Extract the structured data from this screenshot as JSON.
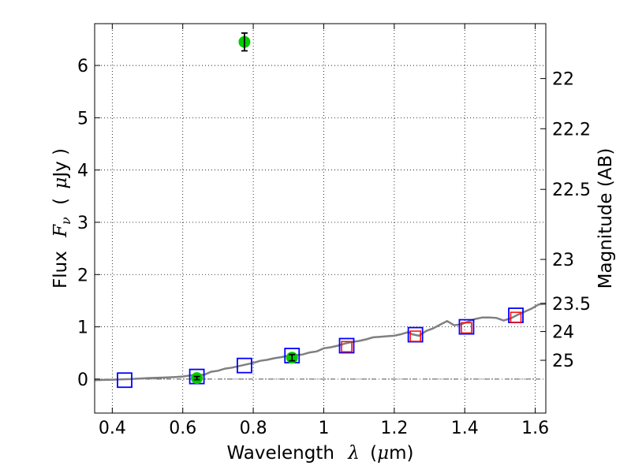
{
  "chart_data": {
    "type": "scatter",
    "title": "",
    "xlabel_parts": {
      "text": "Wavelength",
      "symbol": "λ",
      "unit_open": "(",
      "unit_mu": "μ",
      "unit_rest": "m)"
    },
    "ylabel_parts": {
      "text": "Flux",
      "symbol": "F",
      "subscript": "ν",
      "unit_open": "(",
      "unit_mu": "μ",
      "unit_rest": "Jy )"
    },
    "y2label": "Magnitude (AB)",
    "xlim": [
      0.35,
      1.63
    ],
    "ylim": [
      -0.65,
      6.8
    ],
    "grid": true,
    "x_ticks": [
      0.4,
      0.6,
      0.8,
      1.0,
      1.2,
      1.4,
      1.6
    ],
    "x_tick_labels": [
      "0.4",
      "0.6",
      "0.8",
      "1",
      "1.2",
      "1.4",
      "1.6"
    ],
    "y_ticks": [
      0,
      1,
      2,
      3,
      4,
      5,
      6
    ],
    "y_tick_labels": [
      "0",
      "1",
      "2",
      "3",
      "4",
      "5",
      "6"
    ],
    "y2_ticks": [
      {
        "label": "22",
        "flux": 5.75
      },
      {
        "label": "22.2",
        "flux": 4.79
      },
      {
        "label": "22.5",
        "flux": 3.63
      },
      {
        "label": "23",
        "flux": 2.29
      },
      {
        "label": "23.5",
        "flux": 1.45
      },
      {
        "label": "24",
        "flux": 0.91
      },
      {
        "label": "25",
        "flux": 0.36
      }
    ],
    "zero_line": 0,
    "series": [
      {
        "kind": "model-spectrum",
        "color": "#808080",
        "points": [
          [
            0.35,
            -0.02
          ],
          [
            0.4,
            -0.01
          ],
          [
            0.45,
            0.0
          ],
          [
            0.5,
            0.02
          ],
          [
            0.55,
            0.03
          ],
          [
            0.58,
            0.04
          ],
          [
            0.6,
            0.05
          ],
          [
            0.62,
            0.07
          ],
          [
            0.64,
            0.09
          ],
          [
            0.66,
            0.08
          ],
          [
            0.68,
            0.14
          ],
          [
            0.7,
            0.16
          ],
          [
            0.72,
            0.2
          ],
          [
            0.74,
            0.22
          ],
          [
            0.76,
            0.25
          ],
          [
            0.78,
            0.28
          ],
          [
            0.8,
            0.31
          ],
          [
            0.82,
            0.35
          ],
          [
            0.84,
            0.37
          ],
          [
            0.86,
            0.4
          ],
          [
            0.88,
            0.42
          ],
          [
            0.9,
            0.45
          ],
          [
            0.92,
            0.46
          ],
          [
            0.94,
            0.47
          ],
          [
            0.96,
            0.51
          ],
          [
            0.98,
            0.53
          ],
          [
            1.0,
            0.59
          ],
          [
            1.02,
            0.61
          ],
          [
            1.04,
            0.64
          ],
          [
            1.06,
            0.68
          ],
          [
            1.08,
            0.71
          ],
          [
            1.1,
            0.73
          ],
          [
            1.12,
            0.76
          ],
          [
            1.14,
            0.8
          ],
          [
            1.16,
            0.81
          ],
          [
            1.18,
            0.82
          ],
          [
            1.2,
            0.83
          ],
          [
            1.22,
            0.86
          ],
          [
            1.24,
            0.9
          ],
          [
            1.25,
            0.86
          ],
          [
            1.27,
            0.83
          ],
          [
            1.29,
            0.92
          ],
          [
            1.31,
            0.97
          ],
          [
            1.33,
            1.04
          ],
          [
            1.35,
            1.11
          ],
          [
            1.37,
            1.03
          ],
          [
            1.39,
            1.05
          ],
          [
            1.41,
            1.1
          ],
          [
            1.43,
            1.15
          ],
          [
            1.45,
            1.18
          ],
          [
            1.47,
            1.18
          ],
          [
            1.49,
            1.17
          ],
          [
            1.51,
            1.12
          ],
          [
            1.53,
            1.16
          ],
          [
            1.55,
            1.23
          ],
          [
            1.57,
            1.29
          ],
          [
            1.59,
            1.35
          ],
          [
            1.61,
            1.43
          ],
          [
            1.63,
            1.44
          ]
        ]
      },
      {
        "kind": "model-photometry-blue-squares",
        "color": "#0000ff",
        "points": [
          [
            0.435,
            -0.02
          ],
          [
            0.64,
            0.05
          ],
          [
            0.775,
            0.26
          ],
          [
            0.91,
            0.45
          ],
          [
            1.065,
            0.64
          ],
          [
            1.26,
            0.85
          ],
          [
            1.405,
            1.0
          ],
          [
            1.545,
            1.22
          ]
        ]
      },
      {
        "kind": "model-photometry-red-squares",
        "color": "#ff0000",
        "points": [
          [
            1.065,
            0.62
          ],
          [
            1.26,
            0.82
          ],
          [
            1.405,
            0.98
          ],
          [
            1.545,
            1.18
          ]
        ]
      },
      {
        "kind": "observed-photometry-green-circles",
        "color": "#00cc00",
        "points": [
          {
            "x": 0.64,
            "y": 0.02,
            "err": 0.03
          },
          {
            "x": 0.775,
            "y": 6.45,
            "err": 0.17
          },
          {
            "x": 0.91,
            "y": 0.41,
            "err": 0.06
          }
        ]
      }
    ]
  }
}
